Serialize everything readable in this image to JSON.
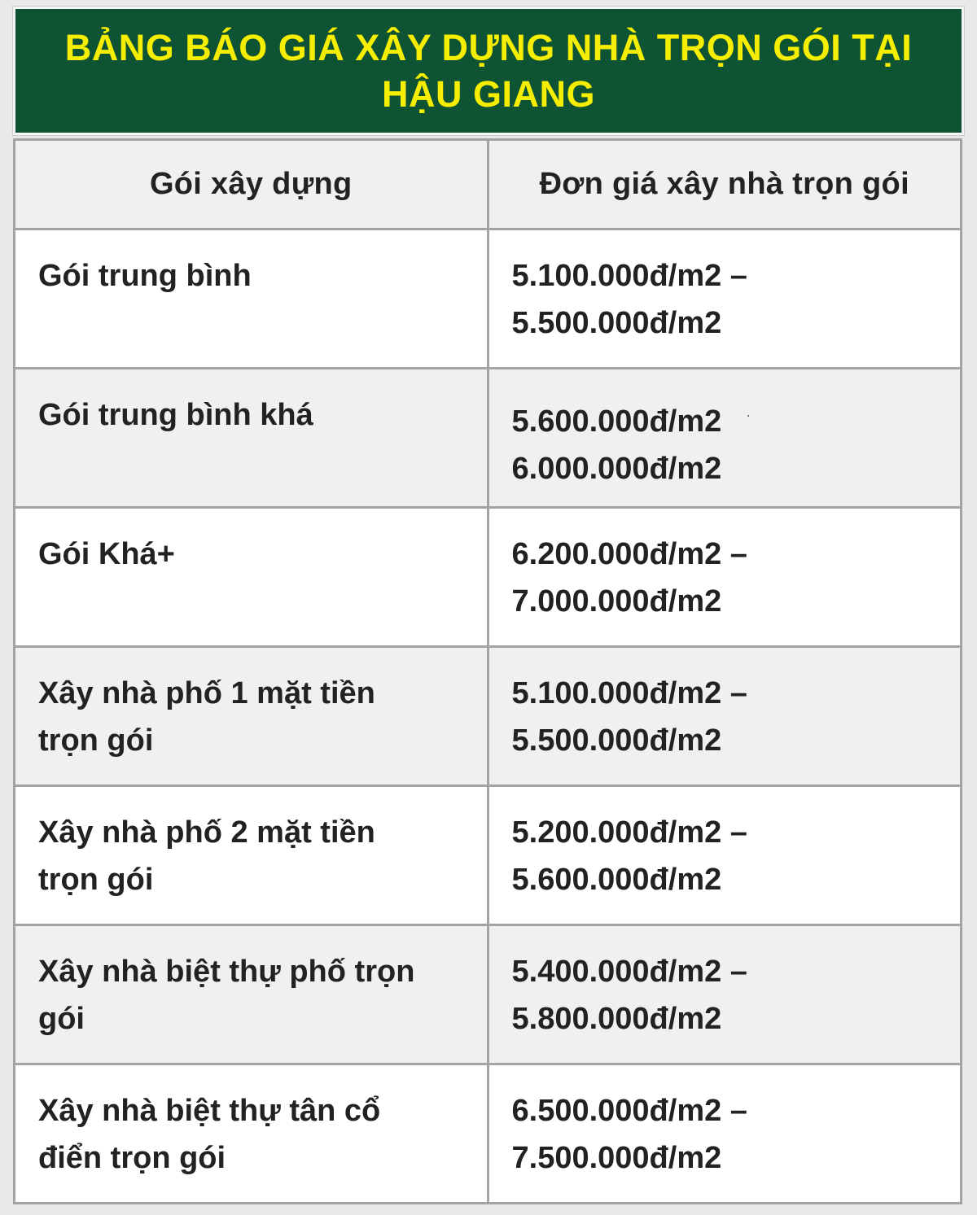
{
  "title": {
    "line1": "BẢNG BÁO GIÁ XÂY DỰNG NHÀ TRỌN GÓI TẠI",
    "line2": "HẬU GIANG"
  },
  "colors": {
    "banner_bg": "#0d5334",
    "banner_text": "#f6ee00",
    "row_alt_bg": "#f0f0f0",
    "row_bg": "#ffffff",
    "border": "#a3a3a3",
    "text": "#222222",
    "page_bg": "#e9e9e9"
  },
  "table": {
    "headers": [
      "Gói xây dựng",
      "Đơn giá xây nhà trọn gói"
    ],
    "rows": [
      {
        "label": [
          "Gói trung bình"
        ],
        "price": [
          "5.100.000đ/m2 –",
          "5.500.000đ/m2"
        ]
      },
      {
        "label": [
          "Gói trung bình khá"
        ],
        "price": [
          "5.600.000đ/m2",
          "6.000.000đ/m2"
        ],
        "mark": "·"
      },
      {
        "label": [
          "Gói Khá+"
        ],
        "price": [
          "6.200.000đ/m2 –",
          "7.000.000đ/m2"
        ]
      },
      {
        "label": [
          "Xây nhà phố 1 mặt tiền",
          "trọn gói"
        ],
        "price": [
          "5.100.000đ/m2 –",
          "5.500.000đ/m2"
        ]
      },
      {
        "label": [
          "Xây nhà phố 2 mặt tiền",
          "trọn gói"
        ],
        "price": [
          "5.200.000đ/m2 –",
          "5.600.000đ/m2"
        ]
      },
      {
        "label": [
          "Xây nhà biệt thự phố trọn",
          "gói"
        ],
        "price": [
          "5.400.000đ/m2 –",
          "5.800.000đ/m2"
        ]
      },
      {
        "label": [
          "Xây nhà biệt thự tân cổ",
          "điển trọn gói"
        ],
        "price": [
          "6.500.000đ/m2 –",
          "7.500.000đ/m2"
        ]
      }
    ]
  }
}
